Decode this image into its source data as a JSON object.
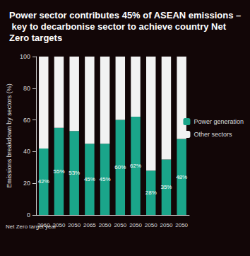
{
  "chart_data": {
    "type": "bar",
    "title": "Power sector contributes 45% of ASEAN emissions – key to decarbonise sector to achieve country Net Zero targets",
    "y_label": "Emissions breakdown by sectors (%)",
    "x_label": "Net Zero target year",
    "categories": [
      "2060",
      "2050",
      "2050",
      "2065",
      "2050",
      "2050",
      "2050",
      "2050",
      "2050",
      "2050"
    ],
    "series": [
      {
        "name": "Power generation",
        "color": "#1aa58a",
        "values": [
          42,
          55,
          53,
          45,
          45,
          60,
          62,
          28,
          35,
          48
        ],
        "value_labels": [
          "42%",
          "55%",
          "53%",
          "45%",
          "45%",
          "60%",
          "62%",
          "28%",
          "35%",
          "48%"
        ]
      },
      {
        "name": "Other sectors",
        "color": "#f2f2f2",
        "values": [
          58,
          45,
          47,
          55,
          55,
          40,
          38,
          72,
          65,
          52
        ]
      }
    ],
    "stacked": true,
    "data_labels": true,
    "legend": "right",
    "grid": false,
    "ylim": [
      0,
      100
    ],
    "yticks": [
      0,
      20,
      40,
      60,
      80,
      100
    ]
  }
}
